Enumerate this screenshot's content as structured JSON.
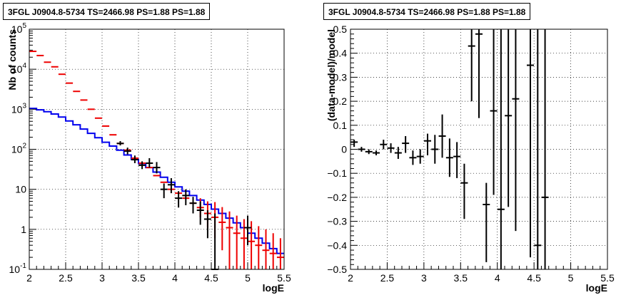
{
  "colors": {
    "data": "#000000",
    "model": "#0000ee",
    "counts": "#ee0000",
    "grid": "#000000"
  },
  "chart_data": [
    {
      "type": "line",
      "title": "3FGL J0904.8-5734 TS=2466.98 PS=1.88 PS=1.88",
      "xlabel": "logE",
      "ylabel": "Nb of counts",
      "xlim": [
        2,
        5.5
      ],
      "ylim": [
        0.1,
        100000
      ],
      "yscale": "log",
      "grid": true,
      "xticks": [
        "2",
        "2.5",
        "3",
        "3.5",
        "4",
        "4.5",
        "5",
        "5.5"
      ],
      "yticks": [
        {
          "value": 0.1,
          "base": "10",
          "exp": "-1"
        },
        {
          "value": 1,
          "base": "1",
          "exp": ""
        },
        {
          "value": 10,
          "base": "10",
          "exp": ""
        },
        {
          "value": 100,
          "base": "10",
          "exp": "2"
        },
        {
          "value": 1000,
          "base": "10",
          "exp": "3"
        },
        {
          "value": 10000,
          "base": "10",
          "exp": "4"
        },
        {
          "value": 100000,
          "base": "10",
          "exp": "5"
        }
      ],
      "model_step": {
        "edges": [
          2.0,
          2.1,
          2.2,
          2.3,
          2.4,
          2.5,
          2.6,
          2.7,
          2.8,
          2.9,
          3.0,
          3.1,
          3.2,
          3.3,
          3.4,
          3.5,
          3.6,
          3.7,
          3.8,
          3.9,
          4.0,
          4.1,
          4.2,
          4.3,
          4.4,
          4.5,
          4.6,
          4.7,
          4.8,
          4.9,
          5.0,
          5.1,
          5.2,
          5.3,
          5.4,
          5.5
        ],
        "values": [
          1050,
          970,
          870,
          760,
          640,
          510,
          410,
          320,
          250,
          195,
          150,
          120,
          95,
          72,
          56,
          44,
          35,
          27,
          20,
          15,
          11.5,
          9,
          7,
          5.4,
          4.2,
          3.2,
          2.5,
          1.9,
          1.45,
          1.1,
          0.8,
          0.6,
          0.45,
          0.33,
          0.25
        ]
      },
      "counts": {
        "x": [
          2.05,
          2.15,
          2.25,
          2.35,
          2.45,
          2.55,
          2.65,
          2.75,
          2.85,
          2.95,
          3.05,
          3.15,
          3.25,
          3.35,
          3.45,
          3.55,
          3.65,
          3.75,
          3.85,
          3.95,
          4.05,
          4.15,
          4.25,
          4.35,
          4.45,
          4.55,
          4.65,
          4.75,
          4.85,
          4.95,
          5.05,
          5.15,
          5.25,
          5.35,
          5.45
        ],
        "y": [
          28000,
          22000,
          15000,
          11500,
          7500,
          4500,
          2800,
          1700,
          1000,
          600,
          380,
          230,
          140,
          95,
          60,
          45,
          35,
          22,
          15,
          10,
          8,
          6,
          4.5,
          3.5,
          2.5,
          2,
          1.5,
          1.1,
          0.8,
          0.6,
          0.5,
          0.4,
          0.3,
          0.25,
          0.2
        ],
        "err_lo": [
          null,
          null,
          null,
          null,
          null,
          null,
          null,
          null,
          null,
          null,
          null,
          null,
          null,
          null,
          null,
          null,
          null,
          null,
          null,
          null,
          null,
          null,
          null,
          2.0,
          1.1,
          0.6,
          0.3,
          0.1,
          0.1,
          0.1,
          0.1,
          0.1,
          0.1,
          0.1,
          0.1
        ],
        "err_hi": [
          null,
          null,
          null,
          null,
          null,
          null,
          null,
          null,
          null,
          null,
          null,
          null,
          null,
          null,
          null,
          null,
          null,
          null,
          null,
          null,
          null,
          null,
          null,
          6.0,
          5.0,
          4.8,
          3.6,
          2.8,
          2.2,
          1.8,
          1.6,
          1.2,
          1.0,
          0.8,
          0.6
        ]
      },
      "data_points": {
        "x": [
          3.25,
          3.35,
          3.45,
          3.55,
          3.65,
          3.75,
          3.85,
          3.95,
          4.05,
          4.15,
          4.25,
          4.35,
          4.45,
          4.55,
          5.0
        ],
        "y": [
          140,
          90,
          55,
          40,
          45,
          35,
          10,
          13,
          6,
          7,
          4.5,
          3,
          1.8,
          0.1,
          1.1
        ],
        "err_lo": [
          125,
          75,
          45,
          32,
          35,
          25,
          6,
          8,
          3.5,
          4.0,
          2.5,
          1.3,
          0.6,
          0.1,
          0.4
        ],
        "err_hi": [
          160,
          110,
          70,
          50,
          60,
          48,
          14,
          19,
          9,
          10,
          6.5,
          5.0,
          3.0,
          2.5,
          2.2
        ]
      }
    },
    {
      "type": "scatter",
      "title": "3FGL J0904.8-5734 TS=2466.98 PS=1.88 PS=1.88",
      "xlabel": "logE",
      "ylabel": "(data-model)/model",
      "xlim": [
        2,
        5.5
      ],
      "ylim": [
        -0.5,
        0.5
      ],
      "grid": true,
      "xticks": [
        "2",
        "2.5",
        "3",
        "3.5",
        "4",
        "4.5",
        "5",
        "5.5"
      ],
      "yticks": [
        "0.5",
        "0.4",
        "0.3",
        "0.2",
        "0.1",
        "0",
        "−0.1",
        "−0.2",
        "−0.3",
        "−0.4",
        "−0.5"
      ],
      "points": {
        "x": [
          2.05,
          2.15,
          2.25,
          2.35,
          2.45,
          2.55,
          2.65,
          2.75,
          2.85,
          2.95,
          3.05,
          3.15,
          3.25,
          3.35,
          3.45,
          3.55,
          3.65,
          3.75,
          3.85,
          3.95,
          4.05,
          4.15,
          4.25,
          4.45,
          4.55,
          4.65
        ],
        "y": [
          0.03,
          0.0,
          -0.01,
          -0.015,
          0.02,
          0.005,
          -0.015,
          0.025,
          -0.035,
          -0.03,
          0.035,
          0.0,
          0.055,
          -0.035,
          -0.03,
          -0.14,
          0.43,
          0.48,
          -0.23,
          0.16,
          -0.25,
          0.14,
          0.21,
          0.35,
          -0.4,
          -0.2
        ],
        "err_lo": [
          0.02,
          0.01,
          0.01,
          0.01,
          0.02,
          0.02,
          0.025,
          0.04,
          0.03,
          0.03,
          0.06,
          0.06,
          0.09,
          0.08,
          0.09,
          0.15,
          0.23,
          0.35,
          0.24,
          0.35,
          0.28,
          0.38,
          0.55,
          0.8,
          0.2,
          0.35
        ],
        "err_hi": [
          0.01,
          0.01,
          0.01,
          0.01,
          0.02,
          0.02,
          0.025,
          0.03,
          0.03,
          0.03,
          0.03,
          0.06,
          0.09,
          0.08,
          0.06,
          0.08,
          0.07,
          0.02,
          0.09,
          0.34,
          0.75,
          0.36,
          0.29,
          0.15,
          0.9,
          0.7
        ]
      }
    }
  ]
}
